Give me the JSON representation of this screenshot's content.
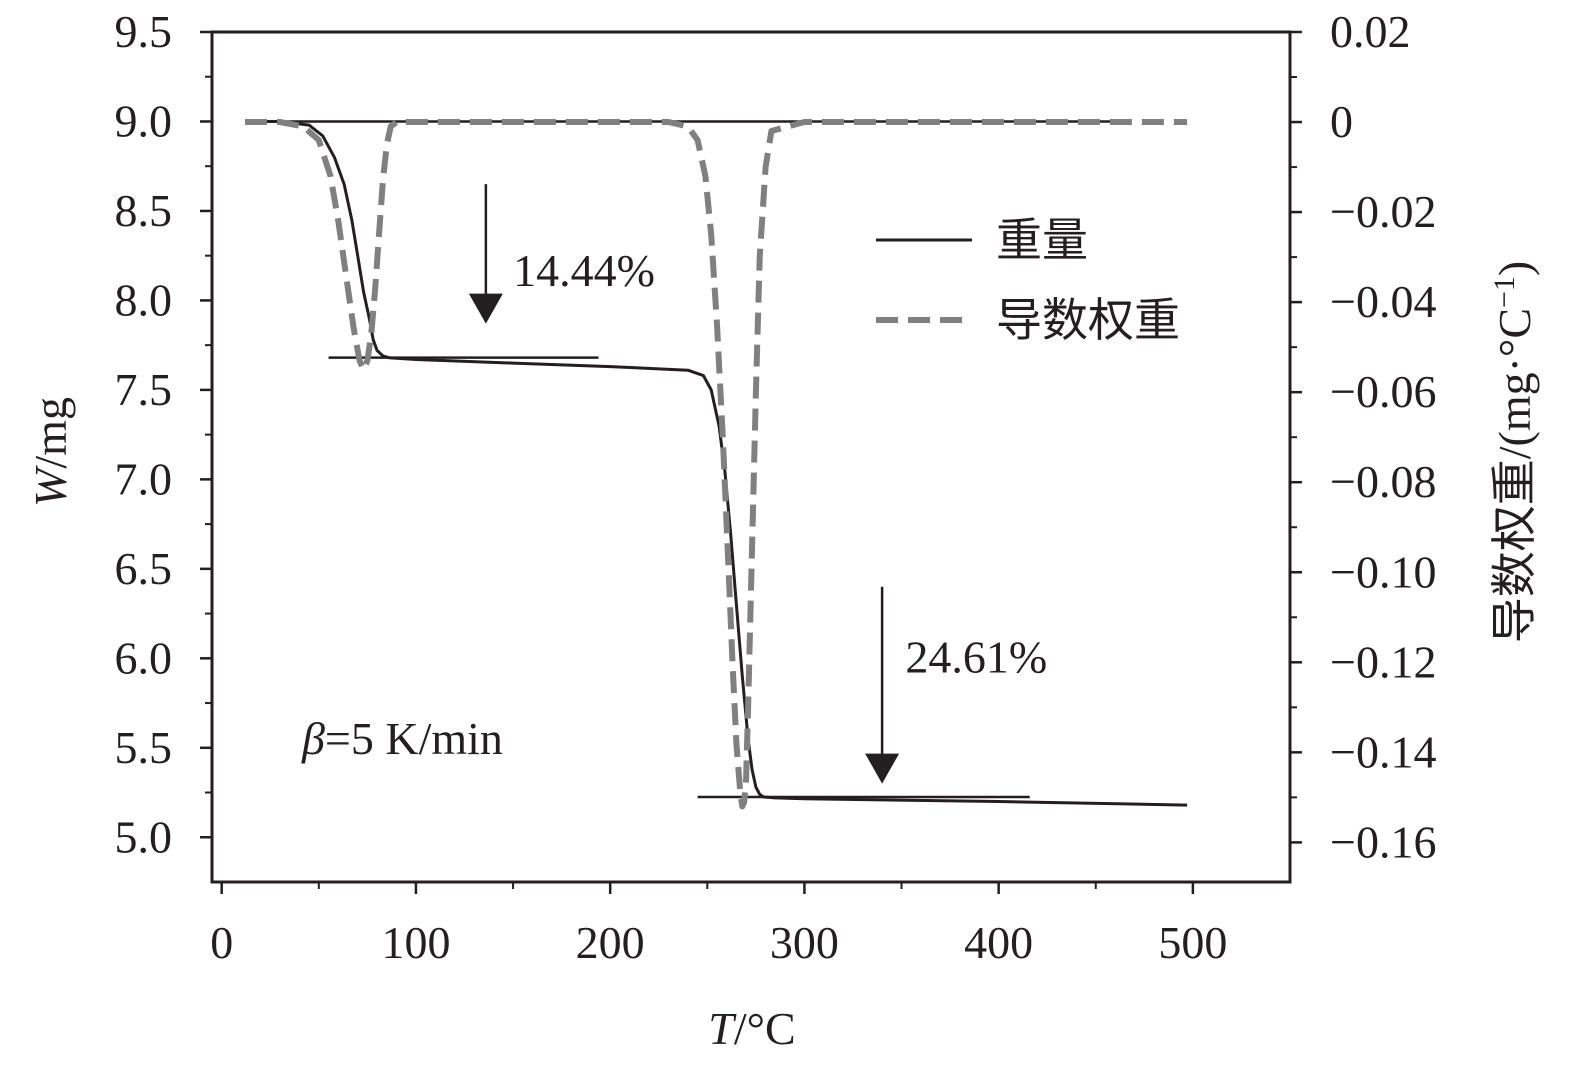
{
  "chart_data": {
    "type": "line",
    "title": "",
    "xlabel": {
      "italic": "T",
      "rest": "/°C"
    },
    "ylabel": {
      "italic": "W",
      "rest": "/mg"
    },
    "y2label": "导数权重/(mg·°C⁻¹)",
    "y2label_parts": {
      "main": "导数权重/(mg·°C",
      "sup": "−1",
      "close": ")"
    },
    "xlim": [
      -5,
      550
    ],
    "ylim": [
      4.75,
      9.5
    ],
    "y2lim": [
      -0.1688,
      0.02
    ],
    "x_ticks": [
      0,
      100,
      200,
      300,
      400,
      500
    ],
    "x_tick_labels": [
      "0",
      "100",
      "200",
      "300",
      "400",
      "500"
    ],
    "x_minor_ticks": [
      50,
      150,
      250,
      350,
      450
    ],
    "y_ticks": [
      5.0,
      5.5,
      6.0,
      6.5,
      7.0,
      7.5,
      8.0,
      8.5,
      9.0,
      9.5
    ],
    "y_tick_labels": [
      "5.0",
      "5.5",
      "6.0",
      "6.5",
      "7.0",
      "7.5",
      "8.0",
      "8.5",
      "9.0",
      "9.5"
    ],
    "y2_ticks": [
      0.02,
      0,
      -0.02,
      -0.04,
      -0.06,
      -0.08,
      -0.1,
      -0.12,
      -0.14,
      -0.16
    ],
    "y2_tick_labels": [
      "0.02",
      "0",
      "−0.02",
      "−0.04",
      "−0.06",
      "−0.08",
      "−0.10",
      "−0.12",
      "−0.14",
      "−0.16"
    ],
    "grid": false,
    "legend_position": "top-right",
    "series": [
      {
        "name": "重量",
        "axis": "left",
        "style": "solid",
        "color": "#231f20",
        "x": [
          12,
          30,
          45,
          52,
          58,
          63,
          67,
          70,
          73,
          76,
          78,
          80,
          83,
          86,
          100,
          150,
          200,
          240,
          248,
          252,
          256,
          259,
          262,
          265,
          268,
          271,
          273,
          275,
          277,
          279,
          285,
          300,
          400,
          497
        ],
        "y": [
          9.0,
          9.0,
          8.98,
          8.92,
          8.8,
          8.65,
          8.45,
          8.25,
          8.05,
          7.9,
          7.78,
          7.72,
          7.69,
          7.68,
          7.67,
          7.65,
          7.63,
          7.61,
          7.58,
          7.5,
          7.3,
          7.05,
          6.7,
          6.3,
          5.9,
          5.55,
          5.38,
          5.28,
          5.24,
          5.225,
          5.22,
          5.215,
          5.2,
          5.18
        ]
      },
      {
        "name": "导数权重",
        "axis": "right",
        "style": "dashed",
        "color": "#808080",
        "x": [
          12,
          30,
          42,
          50,
          56,
          60,
          64,
          68,
          71,
          73,
          75,
          77,
          79,
          81,
          83,
          85,
          87,
          90,
          150,
          230,
          240,
          245,
          249,
          252,
          255,
          258,
          261,
          263,
          265,
          267,
          268,
          269,
          270,
          271,
          273,
          275,
          277,
          280,
          283,
          300,
          400,
          497
        ],
        "y": [
          0.0,
          0.0,
          -0.001,
          -0.004,
          -0.012,
          -0.022,
          -0.034,
          -0.046,
          -0.053,
          -0.055,
          -0.053,
          -0.047,
          -0.037,
          -0.025,
          -0.013,
          -0.005,
          -0.001,
          0.0,
          0.0,
          0.0,
          -0.001,
          -0.004,
          -0.012,
          -0.025,
          -0.045,
          -0.07,
          -0.1,
          -0.12,
          -0.138,
          -0.149,
          -0.152,
          -0.151,
          -0.146,
          -0.13,
          -0.095,
          -0.06,
          -0.03,
          -0.01,
          -0.002,
          0.0,
          0.0,
          0.0
        ]
      }
    ],
    "annotations": [
      {
        "text": "14.44%",
        "x": 150,
        "y": 8.08
      },
      {
        "text": "24.61%",
        "x": 352,
        "y": 5.92
      }
    ],
    "arrows": [
      {
        "x": 136,
        "y_from": 8.65,
        "y_to": 7.87
      },
      {
        "x": 340,
        "y_from": 6.4,
        "y_to": 5.3
      }
    ],
    "reference_lines": [
      {
        "x0": 12,
        "x1": 462,
        "y": 9.0
      },
      {
        "x0": 55,
        "x1": 194,
        "y": 7.68
      },
      {
        "x0": 245,
        "x1": 416,
        "y": 5.225
      }
    ],
    "condition_label": {
      "italic": "β",
      "rest": "=5 K/min"
    },
    "legend": [
      {
        "label": "重量",
        "style": "solid"
      },
      {
        "label": "导数权重",
        "style": "dashed"
      }
    ]
  }
}
